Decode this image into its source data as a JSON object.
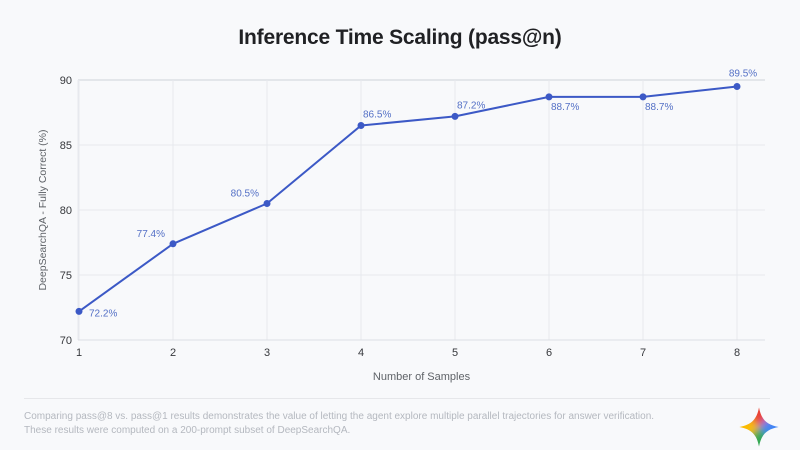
{
  "page": {
    "background": "#f8f9fb"
  },
  "header": {
    "title": "Inference Time Scaling (pass@n)"
  },
  "chart_data": {
    "type": "line",
    "title": "Inference Time Scaling (pass@n)",
    "xlabel": "Number of Samples",
    "ylabel": "DeepSearchQA - Fully Correct (%)",
    "x": [
      1,
      2,
      3,
      4,
      5,
      6,
      7,
      8
    ],
    "values": [
      72.2,
      77.4,
      80.5,
      86.5,
      87.2,
      88.7,
      88.7,
      89.5
    ],
    "point_labels": [
      "72.2%",
      "77.4%",
      "80.5%",
      "86.5%",
      "87.2%",
      "88.7%",
      "88.7%",
      "89.5%"
    ],
    "ylim": [
      70,
      90
    ],
    "yticks": [
      70,
      75,
      80,
      85,
      90
    ],
    "xticks": [
      "1",
      "2",
      "3",
      "4",
      "5",
      "6",
      "7",
      "8"
    ],
    "grid": true,
    "legend": "none",
    "colors": {
      "line": "#3c59c6",
      "point": "#3c59c6",
      "point_label": "#5470c6",
      "tick_label": "#36383c",
      "axis_title": "#5f6368",
      "grid": "#e7e9ee",
      "grid_top": "#ced2d9",
      "axis_line": "#dcdfe4"
    }
  },
  "footer": {
    "note_line1": "Comparing pass@8 vs. pass@1 results demonstrates the value of letting the agent explore multiple parallel trajectories for answer verification.",
    "note_line2": "These results were computed on a 200-prompt subset of DeepSearchQA.",
    "logo_icon": "gemini-sparkle-icon",
    "logo_colors": {
      "top": "#e94335",
      "right": "#4285f4",
      "bottom": "#34a853",
      "left": "#fbbc05"
    }
  }
}
